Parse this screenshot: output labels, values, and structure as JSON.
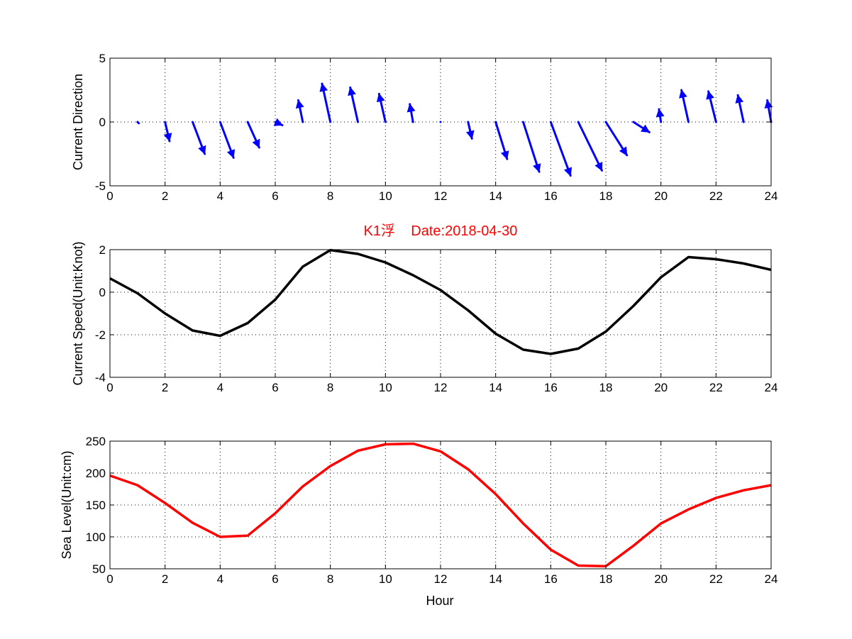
{
  "colors": {
    "arrows": "#0000ff",
    "speed_line": "#000000",
    "sea_level_line": "#ff0000",
    "title": "#ff0000"
  },
  "chart_data": [
    {
      "type": "quiver",
      "ylabel": "Current Direction",
      "xlim": [
        0,
        24
      ],
      "ylim": [
        -5,
        5
      ],
      "xticks": [
        "0",
        "2",
        "4",
        "6",
        "8",
        "10",
        "12",
        "14",
        "16",
        "18",
        "20",
        "22",
        "24"
      ],
      "yticks": [
        "5",
        "0",
        "-5"
      ],
      "grid": true,
      "series": [
        {
          "x": [
            1,
            2,
            3,
            4,
            5,
            6,
            7,
            8,
            9,
            10,
            11,
            12,
            13,
            14,
            15,
            16,
            17,
            18,
            19,
            20,
            21,
            22,
            23,
            24
          ],
          "u": [
            0.1,
            0.35,
            0.95,
            1.05,
            0.9,
            0.55,
            -0.35,
            -0.65,
            -0.6,
            -0.5,
            -0.25,
            0.0,
            0.3,
            0.9,
            1.25,
            1.55,
            1.85,
            1.65,
            1.25,
            -0.15,
            -0.55,
            -0.6,
            -0.45,
            -0.3
          ],
          "v": [
            -0.1,
            -1.5,
            -2.5,
            -2.8,
            -2.0,
            -0.25,
            1.7,
            3.0,
            2.7,
            2.2,
            1.4,
            0.0,
            -1.3,
            -2.9,
            -3.9,
            -4.2,
            -3.8,
            -2.6,
            -0.8,
            1.0,
            2.5,
            2.4,
            2.1,
            1.7
          ]
        }
      ]
    },
    {
      "type": "line",
      "title": "K1浮    Date:2018-04-30",
      "ylabel": "Current Speed(Unit:Knot)",
      "xlim": [
        0,
        24
      ],
      "ylim": [
        -4,
        2
      ],
      "xticks": [
        "0",
        "2",
        "4",
        "6",
        "8",
        "10",
        "12",
        "14",
        "16",
        "18",
        "20",
        "22",
        "24"
      ],
      "yticks": [
        "2",
        "0",
        "-2",
        "-4"
      ],
      "grid": true,
      "series": [
        {
          "x": [
            0,
            1,
            2,
            3,
            4,
            5,
            6,
            7,
            8,
            9,
            10,
            11,
            12,
            13,
            14,
            15,
            16,
            17,
            18,
            19,
            20,
            21,
            22,
            23,
            24
          ],
          "y": [
            0.65,
            -0.05,
            -1.0,
            -1.8,
            -2.05,
            -1.45,
            -0.35,
            1.2,
            1.98,
            1.8,
            1.4,
            0.8,
            0.1,
            -0.85,
            -1.95,
            -2.7,
            -2.9,
            -2.65,
            -1.85,
            -0.65,
            0.7,
            1.65,
            1.55,
            1.35,
            1.05
          ]
        }
      ]
    },
    {
      "type": "line",
      "xlabel": "Hour",
      "ylabel": "Sea Level(Unit:cm)",
      "xlim": [
        0,
        24
      ],
      "ylim": [
        50,
        250
      ],
      "xticks": [
        "0",
        "2",
        "4",
        "6",
        "8",
        "10",
        "12",
        "14",
        "16",
        "18",
        "20",
        "22",
        "24"
      ],
      "yticks": [
        "250",
        "200",
        "150",
        "100",
        "50"
      ],
      "grid": true,
      "series": [
        {
          "x": [
            0,
            1,
            2,
            3,
            4,
            5,
            6,
            7,
            8,
            9,
            10,
            11,
            12,
            13,
            14,
            15,
            16,
            17,
            18,
            19,
            20,
            21,
            22,
            23,
            24
          ],
          "y": [
            196,
            181,
            153,
            122,
            100,
            102,
            137,
            179,
            211,
            235,
            245,
            246,
            234,
            206,
            167,
            121,
            80,
            55,
            54,
            86,
            121,
            143,
            161,
            173,
            181
          ]
        }
      ]
    }
  ]
}
